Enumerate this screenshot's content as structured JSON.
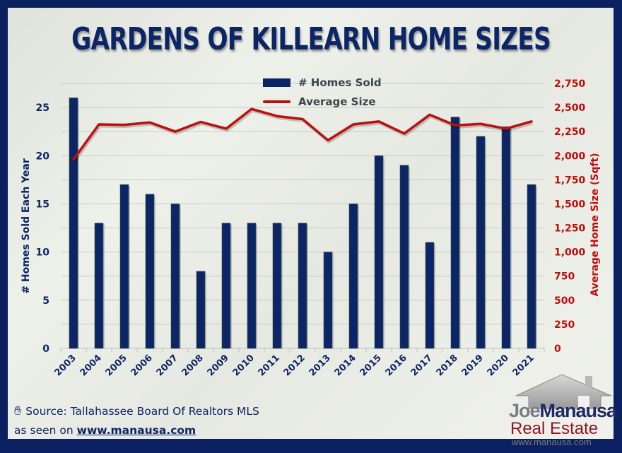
{
  "title": "GARDENS OF KILLEARN HOME SIZES",
  "legend": {
    "bars_label": "# Homes Sold",
    "line_label": "Average Size"
  },
  "axes": {
    "left_title": "# Homes Sold Each Year",
    "right_title": "Average Home Size (Sqft)",
    "left_ticks": [
      "0",
      "5",
      "10",
      "15",
      "20",
      "25"
    ],
    "right_ticks": [
      "0",
      "250",
      "500",
      "750",
      "1,000",
      "1,250",
      "1,500",
      "1,750",
      "2,000",
      "2,250",
      "2,500",
      "2,750"
    ]
  },
  "footer": {
    "source": "Source: Tallahassee Board Of Realtors MLS",
    "seen_prefix": "as seen on ",
    "seen_link": "www.manausa.com"
  },
  "logo": {
    "joe": "Joe",
    "manausa": "Manausa",
    "real_estate": "Real Estate",
    "url": "www.manausa.com"
  },
  "colors": {
    "border": "#0b2060",
    "bar": "#0c2566",
    "line": "#c00d0d",
    "left_axis_text": "#0c2566",
    "right_axis_text": "#c00d0d"
  },
  "chart_data": {
    "type": "bar",
    "title": "GARDENS OF KILLEARN HOME SIZES",
    "categories": [
      "2003",
      "2004",
      "2005",
      "2006",
      "2007",
      "2008",
      "2009",
      "2010",
      "2011",
      "2012",
      "2013",
      "2014",
      "2015",
      "2016",
      "2017",
      "2018",
      "2019",
      "2020",
      "2021"
    ],
    "series": [
      {
        "name": "# Homes Sold",
        "type": "bar",
        "axis": "left",
        "values": [
          26,
          13,
          17,
          16,
          15,
          8,
          13,
          13,
          13,
          13,
          10,
          15,
          20,
          19,
          11,
          24,
          22,
          23,
          17
        ]
      },
      {
        "name": "Average Size",
        "type": "line",
        "axis": "right",
        "values": [
          1960,
          2325,
          2320,
          2345,
          2250,
          2350,
          2280,
          2485,
          2410,
          2380,
          2160,
          2325,
          2355,
          2230,
          2425,
          2315,
          2330,
          2280,
          2355
        ]
      }
    ],
    "xlabel": "",
    "ylabel": "# Homes Sold Each Year",
    "y2label": "Average Home Size (Sqft)",
    "ylim": [
      0,
      27.5
    ],
    "y2lim": [
      0,
      2750
    ],
    "grid": true,
    "legend_position": "top-center"
  }
}
